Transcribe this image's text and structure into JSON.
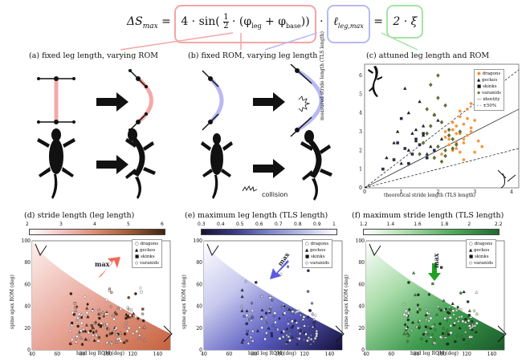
{
  "equation": {
    "lhs": "ΔS",
    "lhs_sub": "max",
    "eq1": "=",
    "term1": "4 · sin(",
    "frac_num": "1",
    "frac_den": "2",
    "term1_rest": "· (φ",
    "phi_leg_sub": "leg",
    "plus": " + φ",
    "phi_base_sub": "base",
    "term1_end": "))",
    "dot": "·",
    "term2": "ℓ",
    "term2_sub": "leg,max",
    "eq2": "=",
    "term3": "2 · ξ",
    "colors": {
      "term1": "#f4a6a6",
      "term2": "#b9b9f2",
      "term3": "#a6e3a6"
    }
  },
  "panels": {
    "a": "(a) fixed leg length, varying ROM",
    "b": "(b) fixed ROM, varying leg length",
    "c": "(c) attuned leg length and ROM",
    "d": "(d) stride length (leg length)",
    "e": "(e) maximum leg length (TLS length)",
    "f": "(f) maximum stride length (TLS length)"
  },
  "collision_label": "collision",
  "chart_c": {
    "xlabel": "theoretical stride length (TLS length)",
    "ylabel": "measured stride length (TLS length)",
    "xticks": [
      "0",
      "1",
      "2",
      "3",
      "4"
    ],
    "yticks": [
      "0",
      "1",
      "2",
      "3",
      "4",
      "5",
      "6"
    ],
    "legend": [
      "dragons",
      "geckos",
      "skinks",
      "varanids",
      "identity",
      "±50%"
    ]
  },
  "colorbars": {
    "d": {
      "ticks": [
        "2",
        "3",
        "4",
        "5",
        "6"
      ],
      "colors": [
        "#ffffff",
        "#f2c0bf",
        "#d98a6c",
        "#9a5a35",
        "#3d2510"
      ]
    },
    "e": {
      "ticks": [
        "0.3",
        "0.4",
        "0.5",
        "0.6",
        "0.7",
        "0.8",
        "0.9",
        "1"
      ],
      "colors": [
        "#1a1030",
        "#3a3c8a",
        "#7b86c8",
        "#b7bde6",
        "#ffffff"
      ]
    },
    "f": {
      "ticks": [
        "1.2",
        "1.4",
        "1.6",
        "1.8",
        "2",
        "2.2"
      ],
      "colors": [
        "#ffffff",
        "#a8d9a8",
        "#4ea85a",
        "#1f6b30"
      ]
    }
  },
  "bottom_axes": {
    "xlabel": "hind leg ROM (deg)",
    "ylabel": "spine apex ROM (deg)",
    "xticks": [
      "40",
      "60",
      "80",
      "100",
      "120",
      "140"
    ],
    "yticks": [
      "0",
      "20",
      "40",
      "60",
      "80",
      "100"
    ],
    "legend": [
      "dragons",
      "geckos",
      "skinks",
      "varanids"
    ],
    "max_label": "max",
    "arrow_colors": {
      "d": "#ee6a5c",
      "e": "#5a5ae0",
      "f": "#22a022"
    }
  },
  "chart_data": [
    {
      "type": "scatter",
      "title": "(c) attuned leg length and ROM",
      "xlabel": "theoretical stride length (TLS length)",
      "ylabel": "measured stride length (TLS length)",
      "xlim": [
        0,
        4.2
      ],
      "ylim": [
        0,
        6.6
      ],
      "series": [
        {
          "name": "dragons",
          "x": [
            2.3,
            2.5,
            2.7,
            2.9,
            3.1,
            2.6,
            2.8,
            2.4,
            2.2,
            3.0,
            2.7,
            2.5,
            2.9,
            2.6,
            2.4,
            2.8,
            3.2,
            2.1,
            2.6,
            2.3,
            2.9,
            2.5,
            2.7,
            2.4,
            2.8,
            2.6,
            3.0,
            2.2,
            2.5,
            2.7
          ],
          "y": [
            2.3,
            2.9,
            3.4,
            3.0,
            2.5,
            4.1,
            3.7,
            2.0,
            2.7,
            3.6,
            2.4,
            3.3,
            4.5,
            1.9,
            3.1,
            2.8,
            2.2,
            1.8,
            3.8,
            2.6,
            3.2,
            2.1,
            1.5,
            3.5,
            4.2,
            2.9,
            1.9,
            3.0,
            2.4,
            2.6
          ]
        },
        {
          "name": "geckos",
          "x": [
            0.6,
            0.9,
            1.2,
            1.4,
            1.6,
            1.8,
            2.0,
            1.1,
            1.3,
            1.5,
            1.7,
            1.9,
            0.8,
            1.0,
            1.6,
            2.1,
            1.4,
            1.2
          ],
          "y": [
            1.6,
            3.0,
            4.0,
            2.5,
            3.3,
            2.2,
            3.6,
            5.3,
            2.9,
            4.6,
            1.8,
            3.9,
            2.4,
            1.3,
            2.8,
            2.6,
            3.1,
            2.0
          ]
        },
        {
          "name": "skinks",
          "x": [
            0.5,
            0.8,
            1.1,
            1.3,
            1.5,
            1.7,
            1.9,
            1.0,
            1.2,
            1.4,
            0.9,
            1.6
          ],
          "y": [
            1.0,
            1.5,
            2.1,
            1.8,
            2.3,
            1.6,
            2.0,
            3.7,
            1.3,
            2.6,
            2.4,
            2.9
          ]
        },
        {
          "name": "varanids",
          "x": [
            1.8,
            2.0,
            2.2,
            1.9,
            2.1,
            2.3,
            1.7,
            2.4,
            1.6,
            2.0,
            2.2,
            1.5,
            1.9,
            2.1,
            2.5,
            1.8,
            2.3,
            2.0,
            2.6,
            1.7,
            2.2,
            2.4
          ],
          "y": [
            5.5,
            4.8,
            4.4,
            3.9,
            3.5,
            3.1,
            2.9,
            2.6,
            2.4,
            2.2,
            2.0,
            1.8,
            1.6,
            1.4,
            2.3,
            3.3,
            2.8,
            6.0,
            3.0,
            4.2,
            1.7,
            2.1
          ]
        }
      ],
      "lines": [
        {
          "name": "identity",
          "slope": 1
        },
        {
          "name": "±50%",
          "slopes": [
            1.5,
            0.5
          ]
        }
      ]
    },
    {
      "type": "scatter",
      "title": "(d) stride length (leg length)",
      "xlabel": "hind leg ROM (deg)",
      "ylabel": "spine apex ROM (deg)",
      "xlim": [
        40,
        150
      ],
      "ylim": [
        0,
        100
      ]
    },
    {
      "type": "scatter",
      "title": "(e) maximum leg length (TLS length)",
      "xlabel": "hind leg ROM (deg)",
      "ylabel": "spine apex ROM (deg)",
      "xlim": [
        40,
        150
      ],
      "ylim": [
        0,
        100
      ]
    },
    {
      "type": "scatter",
      "title": "(f) maximum stride length (TLS length)",
      "xlabel": "hind leg ROM (deg)",
      "ylabel": "spine apex ROM (deg)",
      "xlim": [
        40,
        150
      ],
      "ylim": [
        0,
        100
      ]
    }
  ]
}
